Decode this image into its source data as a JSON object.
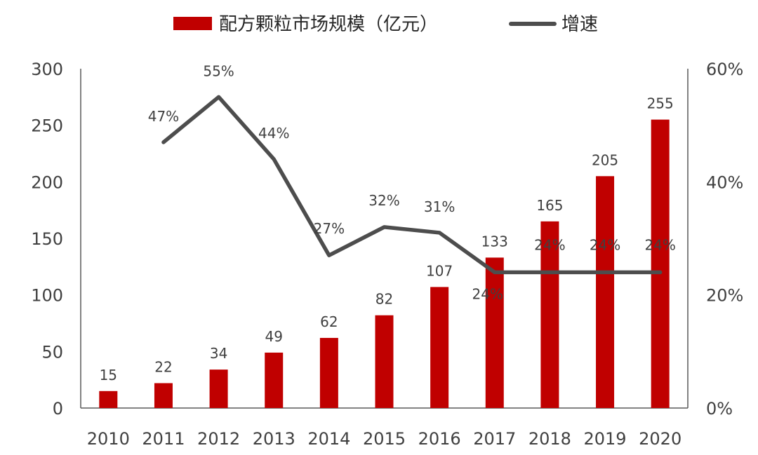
{
  "chart_data": {
    "type": "bar",
    "categories": [
      "2010",
      "2011",
      "2012",
      "2013",
      "2014",
      "2015",
      "2016",
      "2017",
      "2018",
      "2019",
      "2020"
    ],
    "series": [
      {
        "name": "配方颗粒市场规模（亿元）",
        "type": "bar",
        "axis": "left",
        "values": [
          15,
          22,
          34,
          49,
          62,
          82,
          107,
          133,
          165,
          205,
          255
        ],
        "labels": [
          "15",
          "22",
          "34",
          "49",
          "62",
          "82",
          "107",
          "133",
          "165",
          "205",
          "255"
        ],
        "color": "#c00000"
      },
      {
        "name": "增速",
        "type": "line",
        "axis": "right",
        "values": [
          null,
          47,
          55,
          44,
          27,
          32,
          31,
          24,
          24,
          24,
          24
        ],
        "labels": [
          "",
          "47%",
          "55%",
          "44%",
          "27%",
          "32%",
          "31%",
          "24%",
          "24%",
          "24%",
          "24%"
        ],
        "color": "#4d4d4d"
      }
    ],
    "ylim": [
      0,
      300
    ],
    "yticks": [
      "0",
      "50",
      "100",
      "150",
      "200",
      "250",
      "300"
    ],
    "y2lim": [
      0,
      60
    ],
    "y2ticks": [
      "0%",
      "20%",
      "40%",
      "60%"
    ],
    "grid": false,
    "legend_position": "top-center"
  }
}
